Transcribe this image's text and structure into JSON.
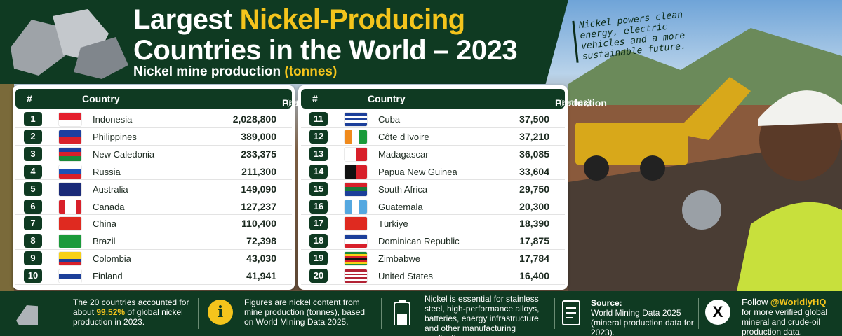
{
  "header": {
    "title_start": "Largest",
    "title_highlight": "Nickel-Producing",
    "title_line2": "Countries in the World – 2023",
    "subtitle": "Nickel mine production",
    "subtitle_unit": "(tonnes)"
  },
  "callout": "Nickel powers clean energy, electric vehicles and a more sustainable future.",
  "table": {
    "headers": {
      "rank": "#",
      "country": "Country",
      "production": "Production",
      "unit": "(tonnes)"
    },
    "rows": [
      [
        1,
        "Indonesia",
        "2,028,800"
      ],
      [
        2,
        "Philippines",
        "389,000"
      ],
      [
        3,
        "New Caledonia",
        "233,375"
      ],
      [
        4,
        "Russia",
        "211,300"
      ],
      [
        5,
        "Australia",
        "149,090"
      ],
      [
        6,
        "Canada",
        "127,237"
      ],
      [
        7,
        "China",
        "110,400"
      ],
      [
        8,
        "Brazil",
        "72,398"
      ],
      [
        9,
        "Colombia",
        "43,030"
      ],
      [
        10,
        "Finland",
        "41,941"
      ],
      [
        11,
        "Cuba",
        "37,500"
      ],
      [
        12,
        "Côte d'Ivoire",
        "37,210"
      ],
      [
        13,
        "Madagascar",
        "36,085"
      ],
      [
        14,
        "Papua New Guinea",
        "33,604"
      ],
      [
        15,
        "South Africa",
        "29,750"
      ],
      [
        16,
        "Guatemala",
        "20,300"
      ],
      [
        17,
        "Türkiye",
        "18,390"
      ],
      [
        18,
        "Dominican Republic",
        "17,875"
      ],
      [
        19,
        "Zimbabwe",
        "17,784"
      ],
      [
        20,
        "United States",
        "16,400"
      ]
    ]
  },
  "footer": {
    "share": {
      "before": "The 20 countries accounted for about",
      "bold": "99.52%",
      "after": "of global nickel production in 2023."
    },
    "figures": "Figures are nickel content from mine production (tonnes), based on World Mining Data 2025.",
    "uses": "Nickel is essential for stainless steel, high-performance alloys, batteries, energy infrastructure and other manufacturing applications.",
    "source": {
      "label": "Source:",
      "name": "World Mining Data 2025",
      "detail": "(mineral production data for 2023)."
    },
    "follow": {
      "before": "Follow",
      "handle": "@WorldlyHQ",
      "after": "for more verified global mineral and crude-oil production data."
    }
  }
}
